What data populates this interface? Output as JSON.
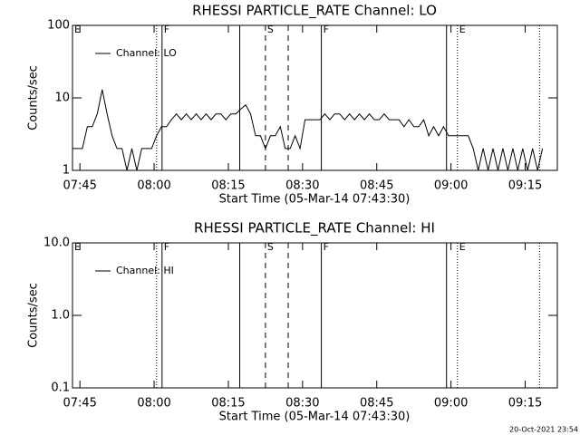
{
  "footer": "20-Oct-2021 23:54",
  "chart_data": [
    {
      "type": "line",
      "title": "RHESSI PARTICLE_RATE Channel: LO",
      "xlabel": "Start Time (05-Mar-14 07:43:30)",
      "ylabel": "Counts/sec",
      "log": true,
      "legend": "upper left",
      "xlim": [
        0,
        98
      ],
      "ylim": [
        1,
        100
      ],
      "yticks": [
        100,
        10,
        1
      ],
      "xticks": [
        {
          "value": 1.5,
          "label": "07:45"
        },
        {
          "value": 16.5,
          "label": "08:00"
        },
        {
          "value": 31.5,
          "label": "08:15"
        },
        {
          "value": 46.5,
          "label": "08:30"
        },
        {
          "value": 61.5,
          "label": "08:45"
        },
        {
          "value": 76.5,
          "label": "09:00"
        },
        {
          "value": 91.5,
          "label": "09:15"
        }
      ],
      "vlines": [
        {
          "x": 17.0,
          "style": "dotted"
        },
        {
          "x": 18.1,
          "style": "solid"
        },
        {
          "x": 33.8,
          "style": "solid"
        },
        {
          "x": 39.0,
          "style": "dashed"
        },
        {
          "x": 43.6,
          "style": "dashed"
        },
        {
          "x": 50.3,
          "style": "solid"
        },
        {
          "x": 75.6,
          "style": "solid"
        },
        {
          "x": 77.8,
          "style": "dotted"
        },
        {
          "x": 94.4,
          "style": "dotted"
        }
      ],
      "annotations": [
        {
          "text": "E",
          "x": 0
        },
        {
          "text": "F",
          "x": 18.1
        },
        {
          "text": "S",
          "x": 39.0
        },
        {
          "text": "F",
          "x": 50.3
        },
        {
          "text": "E",
          "x": 77.8
        }
      ],
      "x": [
        0,
        1,
        2,
        3,
        4,
        5,
        6,
        7,
        8,
        9,
        10,
        11,
        12,
        13,
        14,
        15,
        16,
        17,
        18,
        19,
        20,
        21,
        22,
        23,
        24,
        25,
        26,
        27,
        28,
        29,
        30,
        31,
        32,
        33,
        34,
        35,
        36,
        37,
        38,
        39,
        40,
        41,
        42,
        43,
        44,
        45,
        46,
        47,
        48,
        49,
        50,
        51,
        52,
        53,
        54,
        55,
        56,
        57,
        58,
        59,
        60,
        61,
        62,
        63,
        64,
        65,
        66,
        67,
        68,
        69,
        70,
        71,
        72,
        73,
        74,
        75,
        76,
        77,
        78,
        79,
        80,
        81,
        82,
        83,
        84,
        85,
        86,
        87,
        88,
        89,
        90,
        91,
        92,
        93,
        94,
        95
      ],
      "series": [
        {
          "name": "Channel: LO",
          "color": "#000000",
          "values": [
            2,
            2,
            2,
            4,
            4,
            6,
            13,
            6,
            3,
            2,
            2,
            1,
            2,
            1,
            2,
            2,
            2,
            3,
            4,
            4,
            5,
            6,
            5,
            6,
            5,
            6,
            5,
            6,
            5,
            6,
            6,
            5,
            6,
            6,
            7,
            8,
            6,
            3,
            3,
            2,
            3,
            3,
            4,
            2,
            2,
            3,
            2,
            5,
            5,
            5,
            5,
            6,
            5,
            6,
            6,
            5,
            6,
            5,
            6,
            5,
            6,
            5,
            5,
            6,
            5,
            5,
            5,
            4,
            5,
            4,
            4,
            5,
            3,
            4,
            3,
            4,
            3,
            3,
            3,
            3,
            3,
            2,
            1,
            2,
            1,
            2,
            1,
            2,
            1,
            2,
            1,
            2,
            1,
            2,
            1,
            2
          ]
        }
      ]
    },
    {
      "type": "line",
      "title": "RHESSI PARTICLE_RATE Channel: HI",
      "xlabel": "Start Time (05-Mar-14 07:43:30)",
      "ylabel": "Counts/sec",
      "log": true,
      "legend": "upper left",
      "xlim": [
        0,
        98
      ],
      "ylim": [
        0.1,
        10
      ],
      "yticks": [
        {
          "value": 10,
          "label": "10.0"
        },
        {
          "value": 1,
          "label": "1.0"
        },
        {
          "value": 0.1,
          "label": "0.1"
        }
      ],
      "xticks": [
        {
          "value": 1.5,
          "label": "07:45"
        },
        {
          "value": 16.5,
          "label": "08:00"
        },
        {
          "value": 31.5,
          "label": "08:15"
        },
        {
          "value": 46.5,
          "label": "08:30"
        },
        {
          "value": 61.5,
          "label": "08:45"
        },
        {
          "value": 76.5,
          "label": "09:00"
        },
        {
          "value": 91.5,
          "label": "09:15"
        }
      ],
      "vlines": [
        {
          "x": 17.0,
          "style": "dotted"
        },
        {
          "x": 18.1,
          "style": "solid"
        },
        {
          "x": 33.8,
          "style": "solid"
        },
        {
          "x": 39.0,
          "style": "dashed"
        },
        {
          "x": 43.6,
          "style": "dashed"
        },
        {
          "x": 50.3,
          "style": "solid"
        },
        {
          "x": 75.6,
          "style": "solid"
        },
        {
          "x": 77.8,
          "style": "dotted"
        },
        {
          "x": 94.4,
          "style": "dotted"
        }
      ],
      "annotations": [
        {
          "text": "E",
          "x": 0
        },
        {
          "text": "F",
          "x": 18.1
        },
        {
          "text": "S",
          "x": 39.0
        },
        {
          "text": "F",
          "x": 50.3
        },
        {
          "text": "E",
          "x": 77.8
        }
      ],
      "x": [],
      "series": [
        {
          "name": "Channel: HI",
          "color": "#000000",
          "values": []
        }
      ]
    }
  ]
}
